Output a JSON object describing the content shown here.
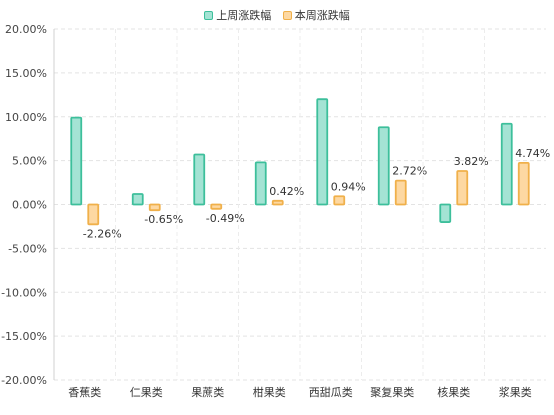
{
  "chart_data": {
    "type": "bar",
    "title": "",
    "xlabel": "",
    "ylabel": "",
    "ylim": [
      -20,
      20
    ],
    "yticks": [
      20,
      15,
      10,
      5,
      0,
      -5,
      -10,
      -15,
      -20
    ],
    "ytick_labels": [
      "20.00%",
      "15.00%",
      "10.00%",
      "5.00%",
      "0.00%",
      "-5.00%",
      "-10.00%",
      "-15.00%",
      "-20.00%"
    ],
    "grid": true,
    "legend_position": "top-center",
    "categories": [
      "香蕉类",
      "仁果类",
      "果蔗类",
      "柑果类",
      "西甜瓜类",
      "聚复果类",
      "核果类",
      "浆果类"
    ],
    "series": [
      {
        "name": "上周涨跌幅",
        "values": [
          9.9,
          1.2,
          5.7,
          4.8,
          12.0,
          8.8,
          -2.0,
          9.2
        ],
        "fill": "#a4e3d4",
        "stroke": "#3dbf9b"
      },
      {
        "name": "本周涨跌幅",
        "values": [
          -2.26,
          -0.65,
          -0.49,
          0.42,
          0.94,
          2.72,
          3.82,
          4.74
        ],
        "labels": [
          "-2.26%",
          "-0.65%",
          "-0.49%",
          "0.42%",
          "0.94%",
          "2.72%",
          "3.82%",
          "4.74%"
        ],
        "fill": "#fdd8a2",
        "stroke": "#f0b04a"
      }
    ]
  }
}
